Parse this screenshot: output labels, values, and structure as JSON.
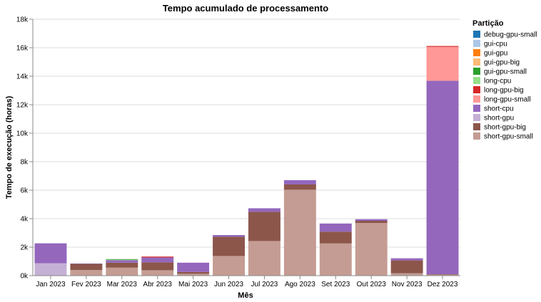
{
  "chart_data": {
    "type": "bar",
    "stacked": true,
    "title": "Tempo acumulado de processamento",
    "xlabel": "Mês",
    "ylabel": "Tempo de execução (horas)",
    "ylim": [
      0,
      18000
    ],
    "yticks": [
      0,
      2000,
      4000,
      6000,
      8000,
      10000,
      12000,
      14000,
      16000,
      18000
    ],
    "ytick_labels": [
      "0k",
      "2k",
      "4k",
      "6k",
      "8k",
      "10k",
      "12k",
      "14k",
      "16k",
      "18k"
    ],
    "grid": true,
    "legend_title": "Partição",
    "legend_position": "right",
    "categories": [
      "Jan 2023",
      "Fev 2023",
      "Mar 2023",
      "Abr 2023",
      "Mai 2023",
      "Jun 2023",
      "Jul 2023",
      "Ago 2023",
      "Set 2023",
      "Out 2023",
      "Nov 2023",
      "Dez 2023"
    ],
    "series": [
      {
        "name": "debug-gpu-small",
        "color": "#1f77b4",
        "values": [
          0,
          0,
          0,
          0,
          0,
          0,
          0,
          0,
          0,
          0,
          0,
          0
        ]
      },
      {
        "name": "gui-cpu",
        "color": "#aec7e8",
        "values": [
          0,
          0,
          0,
          0,
          0,
          0,
          0,
          0,
          0,
          0,
          0,
          0
        ]
      },
      {
        "name": "gui-gpu",
        "color": "#ff7f0e",
        "values": [
          0,
          0,
          0,
          0,
          0,
          0,
          0,
          0,
          0,
          0,
          0,
          0
        ]
      },
      {
        "name": "gui-gpu-big",
        "color": "#ffbb78",
        "values": [
          0,
          0,
          0,
          0,
          0,
          0,
          0,
          0,
          0,
          0,
          0,
          0
        ]
      },
      {
        "name": "gui-gpu-small",
        "color": "#2ca02c",
        "values": [
          0,
          0,
          40,
          0,
          0,
          0,
          0,
          0,
          0,
          0,
          0,
          0
        ]
      },
      {
        "name": "long-cpu",
        "color": "#98df8a",
        "values": [
          0,
          0,
          30,
          0,
          0,
          0,
          0,
          0,
          0,
          0,
          0,
          0
        ]
      },
      {
        "name": "long-gpu-big",
        "color": "#d62728",
        "values": [
          0,
          0,
          0,
          60,
          0,
          0,
          0,
          0,
          0,
          0,
          0,
          60
        ]
      },
      {
        "name": "long-gpu-small",
        "color": "#ff9896",
        "values": [
          0,
          0,
          0,
          0,
          0,
          0,
          0,
          0,
          0,
          0,
          0,
          2380
        ]
      },
      {
        "name": "short-cpu",
        "color": "#9467bd",
        "values": [
          1400,
          20,
          180,
          350,
          650,
          120,
          250,
          300,
          570,
          110,
          150,
          13580
        ]
      },
      {
        "name": "short-gpu",
        "color": "#c5b0d5",
        "values": [
          870,
          0,
          0,
          0,
          0,
          0,
          0,
          0,
          0,
          0,
          0,
          0
        ]
      },
      {
        "name": "short-gpu-big",
        "color": "#8c564b",
        "values": [
          0,
          430,
          350,
          550,
          130,
          1350,
          2050,
          370,
          830,
          150,
          900,
          20
        ]
      },
      {
        "name": "short-gpu-small",
        "color": "#c49c94",
        "values": [
          0,
          400,
          560,
          380,
          130,
          1380,
          2430,
          6030,
          2260,
          3700,
          170,
          80
        ]
      }
    ]
  }
}
